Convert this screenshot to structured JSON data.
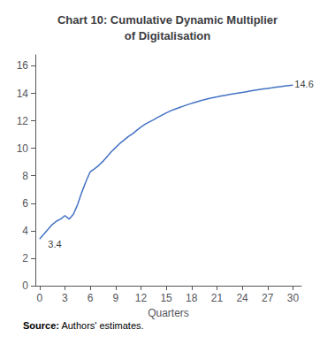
{
  "chart_data": {
    "type": "line",
    "title": "Chart 10: Cumulative Dynamic Multiplier\nof Digitalisation",
    "xlabel": "Quarters",
    "color": "#4472C4",
    "grid": false,
    "xlim": [
      -0.5,
      31
    ],
    "ylim": [
      0,
      16.8
    ],
    "xticks": [
      0,
      3,
      6,
      9,
      12,
      15,
      18,
      21,
      24,
      27,
      30
    ],
    "yticks": [
      0,
      2,
      4,
      6,
      8,
      10,
      12,
      14,
      16
    ],
    "x": [
      0,
      0.5,
      1,
      1.5,
      2,
      2.5,
      3,
      3.5,
      4,
      4.5,
      5,
      5.5,
      6,
      6.5,
      7,
      7.5,
      8,
      8.5,
      9,
      9.5,
      10,
      10.5,
      11,
      11.5,
      12,
      12.5,
      13,
      13.5,
      14,
      14.5,
      15,
      15.5,
      16,
      16.5,
      17,
      17.5,
      18,
      18.5,
      19,
      19.5,
      20,
      20.5,
      21,
      21.5,
      22,
      22.5,
      23,
      23.5,
      24,
      24.5,
      25,
      25.5,
      26,
      26.5,
      27,
      27.5,
      28,
      28.5,
      29,
      29.5,
      30
    ],
    "values": [
      3.4,
      3.75,
      4.1,
      4.45,
      4.7,
      4.85,
      5.1,
      4.85,
      5.2,
      5.9,
      6.8,
      7.6,
      8.3,
      8.5,
      8.75,
      9.05,
      9.4,
      9.75,
      10.05,
      10.35,
      10.6,
      10.85,
      11.05,
      11.3,
      11.55,
      11.75,
      11.92,
      12.08,
      12.25,
      12.42,
      12.58,
      12.72,
      12.84,
      12.95,
      13.06,
      13.17,
      13.27,
      13.36,
      13.45,
      13.54,
      13.61,
      13.68,
      13.74,
      13.8,
      13.86,
      13.92,
      13.97,
      14.02,
      14.07,
      14.12,
      14.17,
      14.22,
      14.27,
      14.32,
      14.36,
      14.4,
      14.45,
      14.49,
      14.53,
      14.57,
      14.6
    ],
    "annotations": [
      {
        "text": "3.4",
        "x": 1.0,
        "y": 3.0
      },
      {
        "text": "14.6",
        "x": 30.2,
        "y": 14.7
      }
    ],
    "source_label": "Source:",
    "source_text": " Authors' estimates."
  }
}
